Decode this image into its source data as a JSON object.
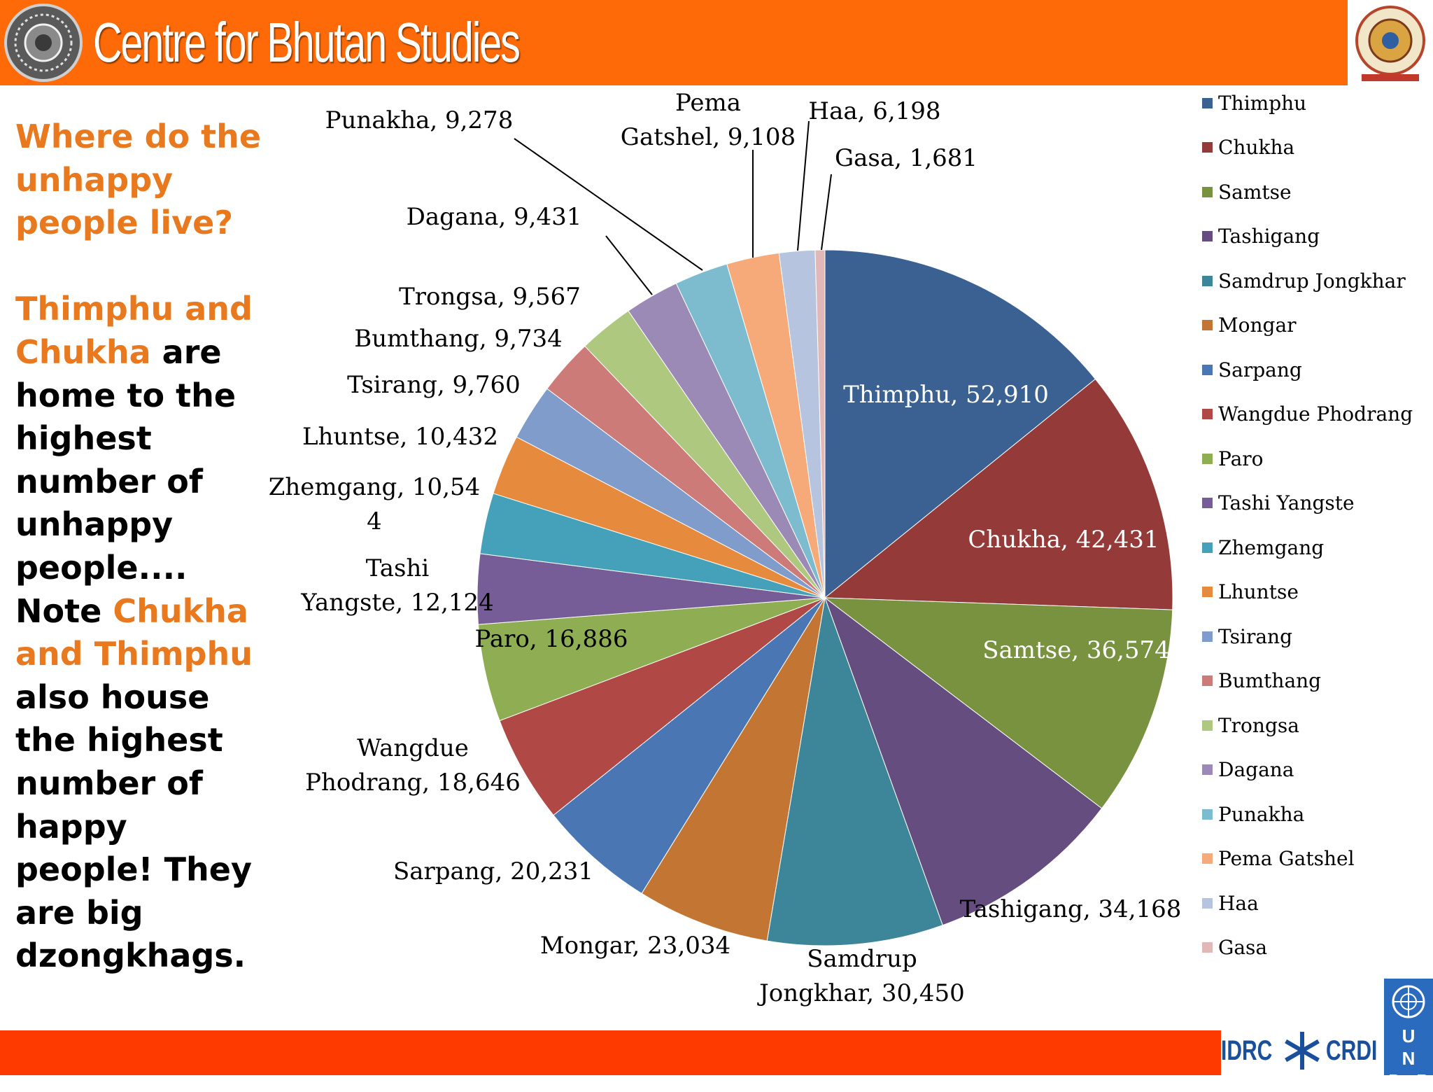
{
  "header": {
    "title": "Centre for Bhutan Studies"
  },
  "sidebar": {
    "question": "Where do the unhappy people live?",
    "p1": "Thimphu and Chukha",
    "p2": "are home to the highest number of unhappy people....",
    "p3": "Note",
    "p4": "Chukha and Thimphu",
    "p5": "also house the highest number of happy people! They are big dzongkhags."
  },
  "footer": {
    "idrc": "IDRC",
    "crdi": "CRDI",
    "undp": "U N D P"
  },
  "chart_data": {
    "type": "pie",
    "title": "",
    "legend_position": "right",
    "slices": [
      {
        "label": "Thimphu",
        "value": 52910,
        "color": "#3a6192",
        "data_label": "Thimphu, 52,910"
      },
      {
        "label": "Chukha",
        "value": 42431,
        "color": "#943b3a",
        "data_label": "Chukha, 42,431"
      },
      {
        "label": "Samtse",
        "value": 36574,
        "color": "#78923f",
        "data_label": "Samtse, 36,574"
      },
      {
        "label": "Tashigang",
        "value": 34168,
        "color": "#654d80",
        "data_label": "Tashigang, 34,168"
      },
      {
        "label": "Samdrup Jongkhar",
        "value": 30450,
        "color": "#3d8599",
        "data_label": "Samdrup Jongkhar, 30,450"
      },
      {
        "label": "Mongar",
        "value": 23034,
        "color": "#c37633",
        "data_label": "Mongar, 23,034"
      },
      {
        "label": "Sarpang",
        "value": 20231,
        "color": "#4a77b4",
        "data_label": "Sarpang, 20,231"
      },
      {
        "label": "Wangdue Phodrang",
        "value": 18646,
        "color": "#b04845",
        "data_label": "Wangdue Phodrang, 18,646"
      },
      {
        "label": "Paro",
        "value": 16886,
        "color": "#8fae53",
        "data_label": "Paro, 16,886"
      },
      {
        "label": "Tashi Yangste",
        "value": 12124,
        "color": "#775d98",
        "data_label": "Tashi Yangste, 12,124"
      },
      {
        "label": "Zhemgang",
        "value": 10544,
        "color": "#44a1b9",
        "data_label": "Zhemgang, 10,544"
      },
      {
        "label": "Lhuntse",
        "value": 10432,
        "color": "#e68a3e",
        "data_label": "Lhuntse, 10,432"
      },
      {
        "label": "Tsirang",
        "value": 9760,
        "color": "#7f9cca",
        "data_label": "Tsirang, 9,760"
      },
      {
        "label": "Bumthang",
        "value": 9734,
        "color": "#cc7b79",
        "data_label": "Bumthang, 9,734"
      },
      {
        "label": "Trongsa",
        "value": 9567,
        "color": "#afc87f",
        "data_label": "Trongsa, 9,567"
      },
      {
        "label": "Dagana",
        "value": 9431,
        "color": "#9b89b6",
        "data_label": "Dagana, 9,431"
      },
      {
        "label": "Punakha",
        "value": 9278,
        "color": "#7dbccf",
        "data_label": "Punakha, 9,278"
      },
      {
        "label": "Pema Gatshel",
        "value": 9108,
        "color": "#f7aa79",
        "data_label": "Pema Gatshel, 9,108"
      },
      {
        "label": "Haa",
        "value": 6198,
        "color": "#b7c4df",
        "data_label": "Haa, 6,198"
      },
      {
        "label": "Gasa",
        "value": 1681,
        "color": "#e0b8b7",
        "data_label": "Gasa, 1,681"
      }
    ]
  }
}
